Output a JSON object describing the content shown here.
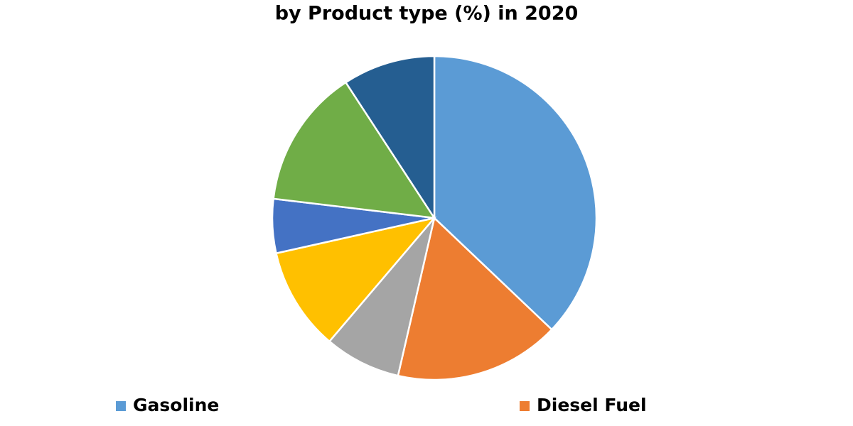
{
  "chart_data": {
    "type": "pie",
    "title": "by Product type (%) in 2020",
    "categories": [
      "Gasoline",
      "Diesel Fuel",
      null,
      null,
      null,
      null,
      null
    ],
    "values": [
      37.1,
      16.5,
      7.6,
      10.3,
      5.4,
      13.9,
      9.2
    ],
    "colors": [
      "#5b9bd5",
      "#ed7d31",
      "#a5a5a5",
      "#ffc000",
      "#4472c4",
      "#70ad47",
      "#255e91"
    ]
  }
}
